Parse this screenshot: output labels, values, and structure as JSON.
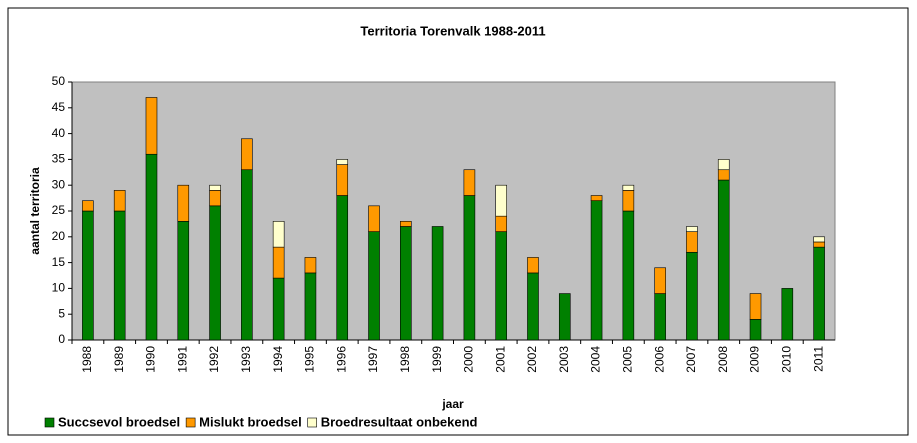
{
  "chart_data": {
    "type": "stacked_bar",
    "title": "Territoria Torenvalk 1988-2011",
    "x_label": "jaar",
    "y_label": "aantal territoria",
    "categories": [
      "1988",
      "1989",
      "1990",
      "1991",
      "1992",
      "1993",
      "1994",
      "1995",
      "1996",
      "1997",
      "1998",
      "1999",
      "2000",
      "2001",
      "2002",
      "2003",
      "2004",
      "2005",
      "2006",
      "2007",
      "2008",
      "2009",
      "2010",
      "2011"
    ],
    "series": [
      {
        "name": "Succsevol broedsel",
        "color": "#008000",
        "values": [
          25,
          25,
          36,
          23,
          26,
          33,
          12,
          13,
          28,
          21,
          22,
          22,
          28,
          21,
          13,
          9,
          27,
          25,
          9,
          17,
          31,
          4,
          10,
          18
        ]
      },
      {
        "name": "Mislukt broedsel",
        "color": "#ff9900",
        "values": [
          2,
          4,
          11,
          7,
          3,
          6,
          6,
          3,
          6,
          5,
          1,
          0,
          5,
          3,
          3,
          0,
          1,
          4,
          5,
          4,
          2,
          5,
          0,
          1
        ]
      },
      {
        "name": "Broedresultaat onbekend",
        "color": "#ffffcc",
        "values": [
          0,
          0,
          0,
          0,
          1,
          0,
          5,
          0,
          1,
          0,
          0,
          0,
          0,
          6,
          0,
          0,
          0,
          1,
          0,
          1,
          2,
          0,
          0,
          1
        ]
      }
    ],
    "ylim": [
      0,
      50
    ],
    "yticks": [
      0,
      5,
      10,
      15,
      20,
      25,
      30,
      35,
      40,
      45,
      50
    ],
    "grid": false,
    "legend": "bottom-left"
  }
}
